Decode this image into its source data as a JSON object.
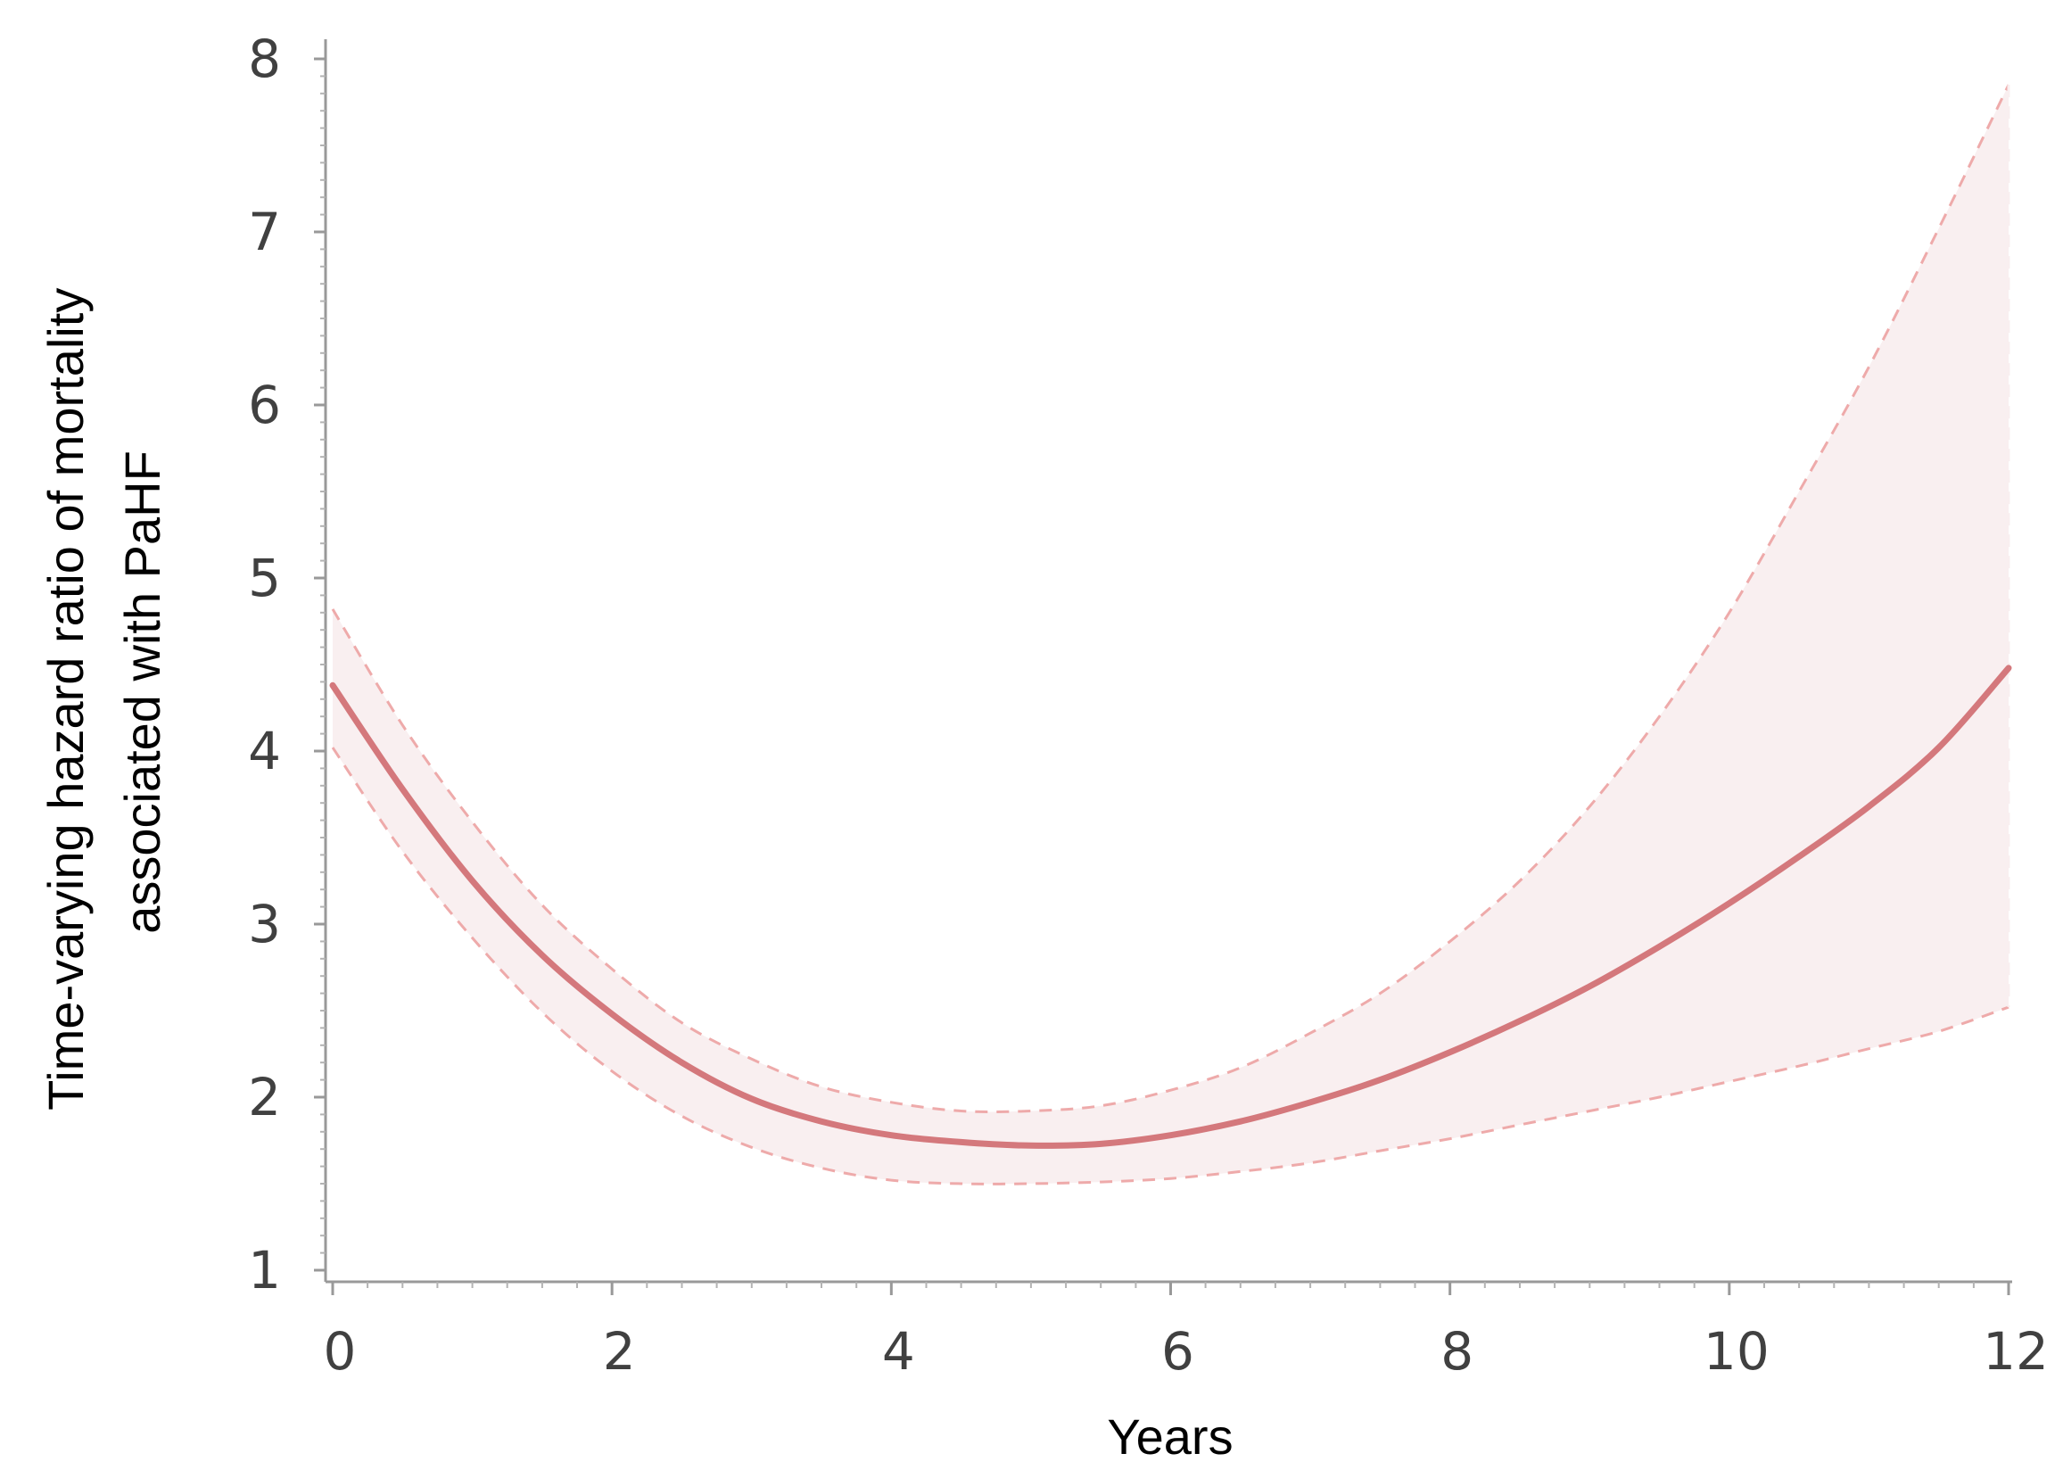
{
  "chart_data": {
    "type": "line",
    "title": "",
    "xlabel": "Years",
    "ylabel_lines": [
      "Time-varying hazard ratio of mortality",
      "associated with PaHF"
    ],
    "xlim": [
      0,
      12
    ],
    "ylim": [
      1,
      8
    ],
    "x_ticks": [
      "0",
      "2",
      "4",
      "6",
      "8",
      "10",
      "12"
    ],
    "y_ticks": [
      "1",
      "2",
      "3",
      "4",
      "5",
      "6",
      "7",
      "8"
    ],
    "grid": false,
    "legend": "none",
    "colors": {
      "line": "#d4787c",
      "band": "#f9eff0",
      "bound": "#eeaaaa"
    },
    "series": [
      {
        "x": [
          0,
          0.5,
          1,
          1.5,
          2,
          2.5,
          3,
          3.5,
          4,
          4.5,
          5,
          5.5,
          6,
          6.5,
          7,
          7.5,
          8,
          8.5,
          9,
          9.5,
          10,
          10.5,
          11,
          11.5,
          12
        ],
        "y": [
          4.38,
          3.78,
          3.25,
          2.82,
          2.48,
          2.2,
          1.99,
          1.86,
          1.78,
          1.74,
          1.72,
          1.73,
          1.78,
          1.86,
          1.97,
          2.1,
          2.26,
          2.44,
          2.64,
          2.87,
          3.12,
          3.39,
          3.68,
          4.02,
          4.48
        ],
        "lower": [
          4.02,
          3.42,
          2.92,
          2.49,
          2.15,
          1.89,
          1.71,
          1.59,
          1.52,
          1.5,
          1.5,
          1.51,
          1.53,
          1.57,
          1.62,
          1.69,
          1.76,
          1.84,
          1.92,
          2.0,
          2.09,
          2.18,
          2.28,
          2.38,
          2.52
        ],
        "upper": [
          4.82,
          4.15,
          3.59,
          3.11,
          2.74,
          2.43,
          2.22,
          2.06,
          1.97,
          1.92,
          1.92,
          1.95,
          2.04,
          2.17,
          2.37,
          2.6,
          2.9,
          3.25,
          3.68,
          4.2,
          4.8,
          5.5,
          6.22,
          7.02,
          7.85
        ]
      }
    ]
  }
}
